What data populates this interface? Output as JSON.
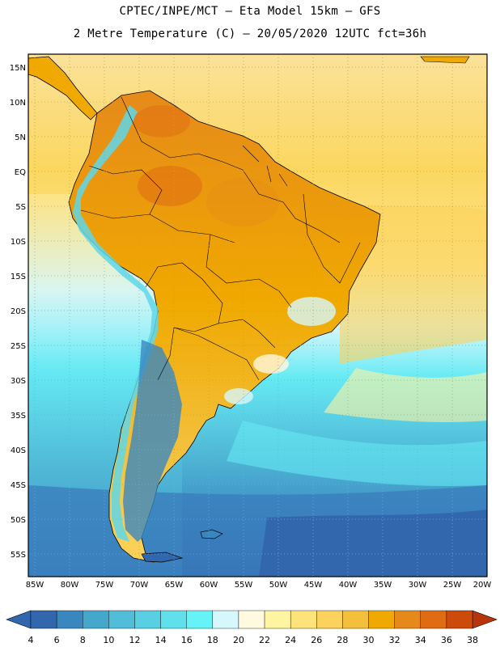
{
  "header": {
    "line1": "CPTEC/INPE/MCT –  Eta Model 15km – GFS",
    "line2": "2 Metre Temperature (C) – 20/05/2020 12UTC fct=36h"
  },
  "map": {
    "lat_labels": [
      "15N",
      "10N",
      "5N",
      "EQ",
      "5S",
      "10S",
      "15S",
      "20S",
      "25S",
      "30S",
      "35S",
      "40S",
      "45S",
      "50S",
      "55S"
    ],
    "lon_labels": [
      "85W",
      "80W",
      "75W",
      "70W",
      "65W",
      "60W",
      "55W",
      "50W",
      "45W",
      "40W",
      "35W",
      "30W",
      "25W",
      "20W"
    ]
  },
  "legend": {
    "labels": [
      "4",
      "6",
      "8",
      "10",
      "12",
      "14",
      "16",
      "18",
      "20",
      "22",
      "24",
      "26",
      "28",
      "30",
      "32",
      "34",
      "36",
      "38"
    ],
    "colors": [
      "#3367ad",
      "#3a87c0",
      "#45a7cc",
      "#52bdd9",
      "#58cfe2",
      "#5fe0eb",
      "#66f3f7",
      "#d6f7fb",
      "#fff9e0",
      "#fff4a1",
      "#fee27a",
      "#fbd25b",
      "#f3c03b",
      "#f0a900",
      "#e58a1a",
      "#df6c12",
      "#cc4b0b",
      "#b8350a"
    ]
  }
}
